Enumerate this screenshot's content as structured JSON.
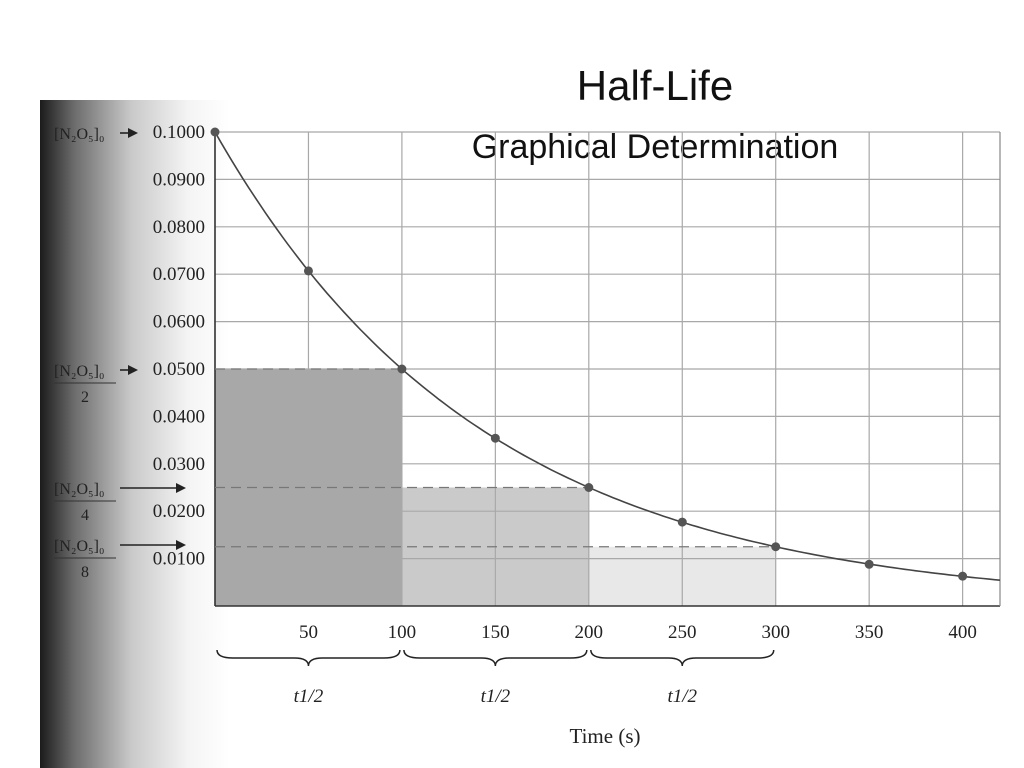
{
  "slide": {
    "title": "Half-Life",
    "subtitle": "Graphical Determination"
  },
  "chart_data": {
    "type": "line",
    "title": "Half-Life",
    "subtitle": "Graphical Determination",
    "xlabel": "Time (s)",
    "ylabel": "",
    "xlim": [
      0,
      420
    ],
    "ylim": [
      0,
      0.1
    ],
    "x_ticks": [
      50,
      100,
      150,
      200,
      250,
      300,
      350,
      400
    ],
    "x_tick_labels": [
      "50",
      "100",
      "150",
      "200",
      "250",
      "300",
      "350",
      "400"
    ],
    "y_ticks": [
      0.01,
      0.02,
      0.03,
      0.04,
      0.05,
      0.06,
      0.07,
      0.08,
      0.09,
      0.1
    ],
    "y_tick_labels": [
      "0.0100",
      "0.0200",
      "0.0300",
      "0.0400",
      "0.0500",
      "0.0600",
      "0.0700",
      "0.0800",
      "0.0900",
      "0.1000"
    ],
    "grid": true,
    "legend": "none",
    "series": [
      {
        "x": [
          0,
          50,
          100,
          150,
          200,
          250,
          300,
          350,
          400
        ],
        "values": [
          0.1,
          0.0707,
          0.05,
          0.0354,
          0.025,
          0.0177,
          0.0125,
          0.0088,
          0.0063
        ]
      }
    ],
    "curve_end": {
      "x": 420,
      "y": 0.0054
    },
    "half_life_regions": [
      {
        "x0": 0,
        "x1": 100,
        "y": 0.05,
        "shade": "#9e9e9e",
        "brace_label": "t1/2"
      },
      {
        "x0": 100,
        "x1": 200,
        "y": 0.025,
        "shade": "#c4c4c4",
        "brace_label": "t1/2"
      },
      {
        "x0": 200,
        "x1": 300,
        "y": 0.0125,
        "shade": "#e6e6e6",
        "brace_label": "t1/2"
      }
    ],
    "annotations": [
      {
        "numerator": "[N₂O₅]₀",
        "denominator": "",
        "value": 0.1
      },
      {
        "numerator": "[N₂O₅]₀",
        "denominator": "2",
        "value": 0.05
      },
      {
        "numerator": "[N₂O₅]₀",
        "denominator": "4",
        "value": 0.025
      },
      {
        "numerator": "[N₂O₅]₀",
        "denominator": "8",
        "value": 0.0125
      }
    ],
    "colors": {
      "curve": "#444444",
      "grid": "#a8a8a8",
      "point": "#555555"
    }
  }
}
